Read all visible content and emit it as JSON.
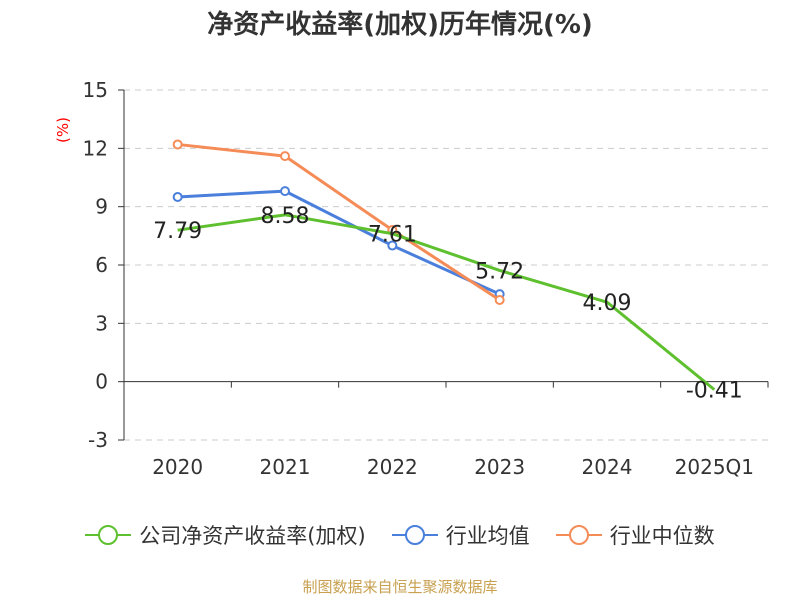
{
  "chart_data": {
    "type": "line",
    "title": "净资产收益率(加权)历年情况(%)",
    "xlabel": "",
    "ylabel": "(%)",
    "categories": [
      "2020",
      "2021",
      "2022",
      "2023",
      "2024",
      "2025Q1"
    ],
    "ylim": [
      -3,
      15
    ],
    "yticks": [
      15,
      12,
      9,
      6,
      3,
      0,
      -3
    ],
    "grid": true,
    "legend_position": "bottom",
    "series": [
      {
        "name": "公司净资产收益率(加权)",
        "color": "#5ec02e",
        "values": [
          7.79,
          8.58,
          7.61,
          5.72,
          4.09,
          -0.41
        ],
        "labels": [
          "7.79",
          "8.58",
          "7.61",
          "5.72",
          "4.09",
          "-0.41"
        ]
      },
      {
        "name": "行业均值",
        "color": "#4a7fdc",
        "values": [
          9.5,
          9.8,
          7.0,
          4.5,
          null,
          null
        ]
      },
      {
        "name": "行业中位数",
        "color": "#f58c57",
        "values": [
          12.2,
          11.6,
          7.8,
          4.2,
          null,
          null
        ]
      }
    ]
  },
  "footer": "制图数据来自恒生聚源数据库"
}
